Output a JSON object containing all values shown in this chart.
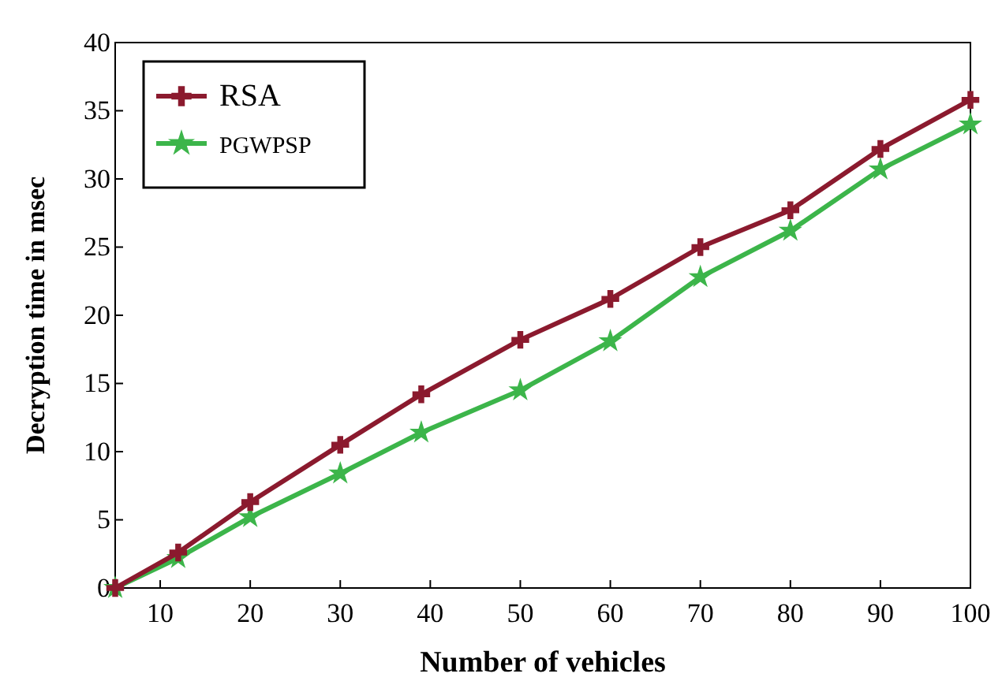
{
  "chart_data": {
    "type": "line",
    "xlabel": "Number of vehicles",
    "ylabel": "Decryption time in msec",
    "xlim": [
      5,
      100
    ],
    "xticks": [
      10,
      20,
      30,
      40,
      50,
      60,
      70,
      80,
      90,
      100
    ],
    "ylim": [
      0,
      40
    ],
    "yticks": [
      0,
      5,
      10,
      15,
      20,
      25,
      30,
      35,
      40
    ],
    "grid": false,
    "legend": "top left",
    "series": [
      {
        "name": "RSA",
        "color": "#8b1a2e",
        "marker": "cross",
        "x": [
          5,
          12,
          20,
          30,
          39,
          50,
          60,
          70,
          80,
          90,
          100
        ],
        "values": [
          0,
          2.6,
          6.3,
          10.5,
          14.2,
          18.2,
          21.2,
          25,
          27.7,
          32.2,
          35.8
        ]
      },
      {
        "name": "PGWPSP",
        "color": "#3cb54a",
        "marker": "star",
        "x": [
          5,
          12,
          20,
          30,
          39,
          50,
          60,
          70,
          80,
          90,
          100
        ],
        "values": [
          0,
          2.2,
          5.2,
          8.4,
          11.4,
          14.5,
          18.1,
          22.8,
          26.2,
          30.7,
          34
        ]
      }
    ]
  }
}
